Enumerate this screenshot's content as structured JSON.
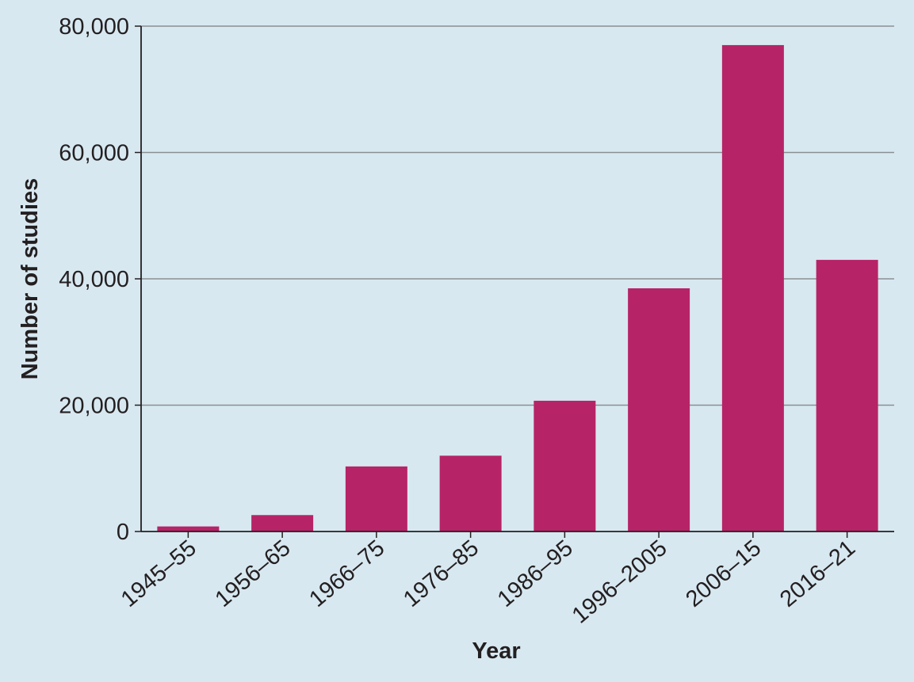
{
  "colors": {
    "background": "#d8e8f1",
    "bar": "#b72367",
    "gridline": "#8a8f94",
    "axis": "#231f20",
    "text": "#231f20"
  },
  "chart_data": {
    "type": "bar",
    "categories": [
      "1945–55",
      "1956–65",
      "1966–75",
      "1976–85",
      "1986–95",
      "1996–2005",
      "2006–15",
      "2016–21"
    ],
    "values": [
      800,
      2600,
      10300,
      12000,
      20700,
      38500,
      77000,
      43000
    ],
    "xlabel": "Year",
    "ylabel": "Number of studies",
    "ylim": [
      0,
      80000
    ],
    "yticks": [
      0,
      20000,
      40000,
      60000,
      80000
    ],
    "ytick_labels": [
      "0",
      "20,000",
      "40,000",
      "60,000",
      "80,000"
    ],
    "grid": "horizontal",
    "legend": "none"
  }
}
